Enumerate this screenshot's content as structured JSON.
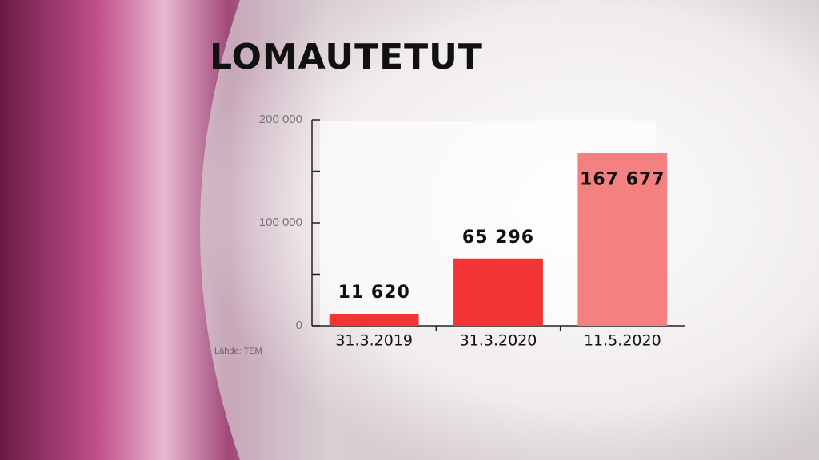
{
  "chart_data": {
    "type": "bar",
    "title": "LOMAUTETUT",
    "categories": [
      "31.3.2019",
      "31.3.2020",
      "11.5.2020"
    ],
    "values": [
      11620,
      65296,
      167677
    ],
    "value_labels": [
      "11 620",
      "65 296",
      "167 677"
    ],
    "colors": [
      "#f23434",
      "#f23434",
      "#f58080"
    ],
    "ylim": [
      0,
      200000
    ],
    "yticks": [
      0,
      {
        "value": 100000,
        "label": "100 000"
      },
      {
        "value": 200000,
        "label": "200 000"
      }
    ],
    "minor_yticks": [
      50000,
      150000
    ],
    "source": "Lähde: TEM"
  }
}
